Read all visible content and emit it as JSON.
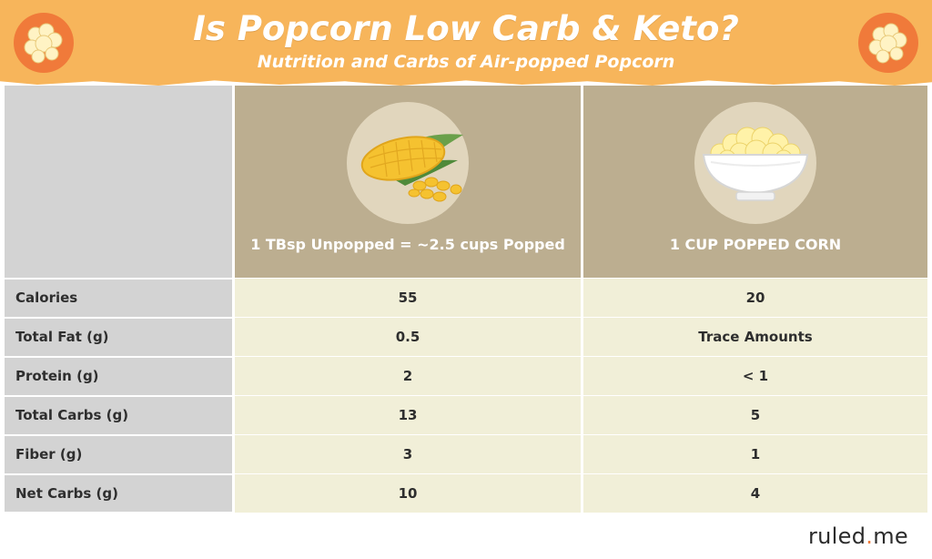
{
  "header": {
    "title": "Is Popcorn Low Carb & Keto?",
    "subtitle": "Nutrition and Carbs of Air-popped Popcorn"
  },
  "icons": {
    "banner": "popcorn-icon",
    "column_a": "corn-cob-icon",
    "column_b": "popcorn-bowl-icon"
  },
  "colors": {
    "banner": "#f7b55b",
    "badge": "#f07a3a",
    "header_cells": "#bcae90",
    "label_column": "#d3d3d3",
    "value_cells": "#f1efd8",
    "accent": "#f07a3a"
  },
  "chart_data": {
    "type": "table",
    "columns": [
      "1 TBsp Unpopped = ~2.5 cups Popped",
      "1 CUP POPPED CORN"
    ],
    "rows": [
      {
        "label": "Calories",
        "values": [
          "55",
          "20"
        ]
      },
      {
        "label": "Total Fat (g)",
        "values": [
          "0.5",
          "Trace Amounts"
        ]
      },
      {
        "label": "Protein (g)",
        "values": [
          "2",
          "< 1"
        ]
      },
      {
        "label": "Total Carbs (g)",
        "values": [
          "13",
          "5"
        ]
      },
      {
        "label": "Fiber (g)",
        "values": [
          "3",
          "1"
        ]
      },
      {
        "label": "Net Carbs (g)",
        "values": [
          "10",
          "4"
        ]
      }
    ]
  },
  "brand": {
    "name": "ruled",
    "dot": ".",
    "suffix": "me"
  }
}
